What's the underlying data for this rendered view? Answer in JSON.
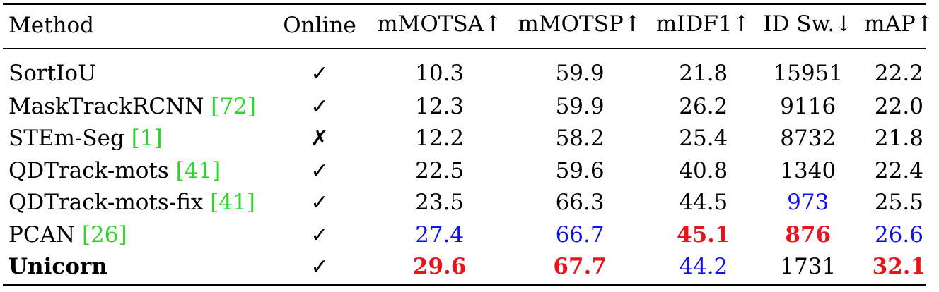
{
  "colors": {
    "best": "#e8141c",
    "second": "#1010e8",
    "citation": "#2bd62b"
  },
  "headers": [
    "Method",
    "Online",
    "mMOTSA↑",
    "mMOTSP↑",
    "mIDF1↑",
    "ID Sw.↓",
    "mAP↑"
  ],
  "rows": [
    {
      "method": "SortIoU",
      "cite": "",
      "online": "✓",
      "mmotsa": "10.3",
      "mmotsp": "59.9",
      "midf1": "21.8",
      "idsw": "15951",
      "map": "22.2"
    },
    {
      "method": "MaskTrackRCNN ",
      "cite": "[72]",
      "online": "✓",
      "mmotsa": "12.3",
      "mmotsp": "59.9",
      "midf1": "26.2",
      "idsw": "9116",
      "map": "22.0"
    },
    {
      "method": "STEm-Seg ",
      "cite": "[1]",
      "online": "✗",
      "mmotsa": "12.2",
      "mmotsp": "58.2",
      "midf1": "25.4",
      "idsw": "8732",
      "map": "21.8"
    },
    {
      "method": "QDTrack-mots ",
      "cite": "[41]",
      "online": "✓",
      "mmotsa": "22.5",
      "mmotsp": "59.6",
      "midf1": "40.8",
      "idsw": "1340",
      "map": "22.4"
    },
    {
      "method": "QDTrack-mots-fix ",
      "cite": "[41]",
      "online": "✓",
      "mmotsa": "23.5",
      "mmotsp": "66.3",
      "midf1": "44.5",
      "idsw": "973",
      "map": "25.5"
    },
    {
      "method": "PCAN ",
      "cite": "[26]",
      "online": "✓",
      "mmotsa": "27.4",
      "mmotsp": "66.7",
      "midf1": "45.1",
      "idsw": "876",
      "map": "26.6"
    },
    {
      "method": "Unicorn",
      "cite": "",
      "online": "✓",
      "mmotsa": "29.6",
      "mmotsp": "67.7",
      "midf1": "44.2",
      "idsw": "1731",
      "map": "32.1"
    }
  ]
}
